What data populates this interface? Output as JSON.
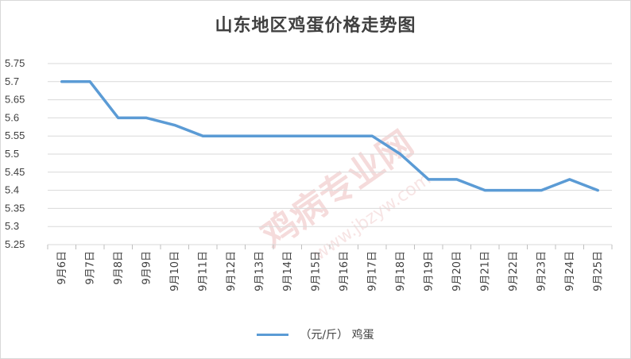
{
  "chart_data": {
    "type": "line",
    "title": "山东地区鸡蛋价格走势图",
    "categories": [
      "9月6日",
      "9月7日",
      "9月8日",
      "9月9日",
      "9月10日",
      "9月11日",
      "9月12日",
      "9月13日",
      "9月14日",
      "9月15日",
      "9月16日",
      "9月17日",
      "9月18日",
      "9月19日",
      "9月20日",
      "9月21日",
      "9月22日",
      "9月23日",
      "9月24日",
      "9月25日"
    ],
    "series": [
      {
        "name": "（元/斤） 鸡蛋",
        "values": [
          5.7,
          5.7,
          5.6,
          5.6,
          5.58,
          5.55,
          5.55,
          5.55,
          5.55,
          5.55,
          5.55,
          5.55,
          5.5,
          5.43,
          5.43,
          5.4,
          5.4,
          5.4,
          5.43,
          5.4
        ],
        "color": "#5B9BD5"
      }
    ],
    "yticks": [
      "5.25",
      "5.3",
      "5.35",
      "5.4",
      "5.45",
      "5.5",
      "5.55",
      "5.6",
      "5.65",
      "5.7",
      "5.75"
    ],
    "ylim": [
      5.25,
      5.75
    ],
    "xlabel": "",
    "ylabel": "",
    "grid": true,
    "legend_position": "bottom"
  },
  "watermark": {
    "text": "鸡病专业网",
    "url": "www.jbzyw.com",
    "color": "#e8b0b0"
  }
}
